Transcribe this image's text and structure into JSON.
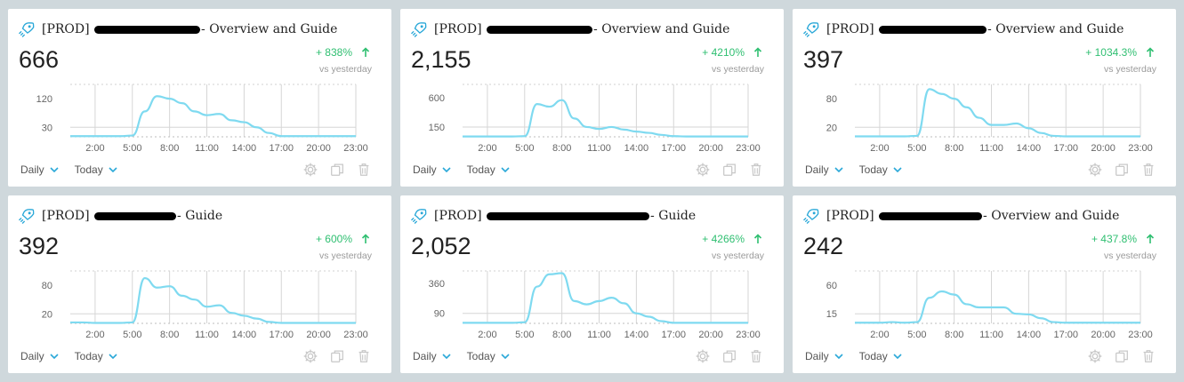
{
  "cards": [
    {
      "title_prefix": "[PROD]",
      "title_suffix": "- Overview and Guide",
      "value": "666",
      "change": "+ 838%",
      "vs_label": "vs yesterday",
      "granularity": "Daily",
      "range": "Today",
      "chart_data": {
        "type": "area",
        "x": [
          "0:00",
          "1:00",
          "2:00",
          "3:00",
          "4:00",
          "5:00",
          "6:00",
          "7:00",
          "8:00",
          "9:00",
          "10:00",
          "11:00",
          "12:00",
          "13:00",
          "14:00",
          "15:00",
          "16:00",
          "17:00",
          "18:00",
          "19:00",
          "20:00",
          "21:00",
          "22:00",
          "23:00"
        ],
        "x_tick_labels": [
          "2:00",
          "5:00",
          "8:00",
          "11:00",
          "14:00",
          "17:00",
          "20:00",
          "23:00"
        ],
        "y_tick_labels": [
          "120",
          "30"
        ],
        "y_ticks": [
          120,
          30
        ],
        "ylim": [
          0,
          165
        ],
        "values": [
          2,
          2,
          2,
          2,
          2,
          4,
          80,
          128,
          120,
          106,
          80,
          68,
          72,
          52,
          46,
          30,
          12,
          2,
          2,
          2,
          2,
          2,
          2,
          2
        ]
      }
    },
    {
      "title_prefix": "[PROD]",
      "title_suffix": "- Overview and Guide",
      "value": "2,155",
      "change": "+ 4210%",
      "vs_label": "vs yesterday",
      "granularity": "Daily",
      "range": "Today",
      "chart_data": {
        "type": "area",
        "x": [
          "0:00",
          "1:00",
          "2:00",
          "3:00",
          "4:00",
          "5:00",
          "6:00",
          "7:00",
          "8:00",
          "9:00",
          "10:00",
          "11:00",
          "12:00",
          "13:00",
          "14:00",
          "15:00",
          "16:00",
          "17:00",
          "18:00",
          "19:00",
          "20:00",
          "21:00",
          "22:00",
          "23:00"
        ],
        "x_tick_labels": [
          "2:00",
          "5:00",
          "8:00",
          "11:00",
          "14:00",
          "17:00",
          "20:00",
          "23:00"
        ],
        "y_tick_labels": [
          "600",
          "150"
        ],
        "y_ticks": [
          600,
          150
        ],
        "ylim": [
          0,
          800
        ],
        "values": [
          5,
          5,
          5,
          5,
          5,
          10,
          500,
          460,
          560,
          280,
          150,
          120,
          150,
          110,
          80,
          60,
          30,
          10,
          5,
          5,
          5,
          5,
          5,
          5
        ]
      }
    },
    {
      "title_prefix": "[PROD]",
      "title_suffix": "- Overview and Guide",
      "value": "397",
      "change": "+ 1034.3%",
      "vs_label": "vs yesterday",
      "granularity": "Daily",
      "range": "Today",
      "chart_data": {
        "type": "area",
        "x": [
          "0:00",
          "1:00",
          "2:00",
          "3:00",
          "4:00",
          "5:00",
          "6:00",
          "7:00",
          "8:00",
          "9:00",
          "10:00",
          "11:00",
          "12:00",
          "13:00",
          "14:00",
          "15:00",
          "16:00",
          "17:00",
          "18:00",
          "19:00",
          "20:00",
          "21:00",
          "22:00",
          "23:00"
        ],
        "x_tick_labels": [
          "2:00",
          "5:00",
          "8:00",
          "11:00",
          "14:00",
          "17:00",
          "20:00",
          "23:00"
        ],
        "y_tick_labels": [
          "80",
          "20"
        ],
        "y_ticks": [
          80,
          20
        ],
        "ylim": [
          0,
          110
        ],
        "values": [
          1,
          1,
          1,
          1,
          1,
          2,
          100,
          90,
          80,
          62,
          40,
          25,
          25,
          28,
          18,
          8,
          2,
          1,
          1,
          1,
          1,
          1,
          1,
          1
        ]
      }
    },
    {
      "title_prefix": "[PROD]",
      "title_suffix": "- Guide",
      "value": "392",
      "change": "+ 600%",
      "vs_label": "vs yesterday",
      "granularity": "Daily",
      "range": "Today",
      "chart_data": {
        "type": "area",
        "x": [
          "0:00",
          "1:00",
          "2:00",
          "3:00",
          "4:00",
          "5:00",
          "6:00",
          "7:00",
          "8:00",
          "9:00",
          "10:00",
          "11:00",
          "12:00",
          "13:00",
          "14:00",
          "15:00",
          "16:00",
          "17:00",
          "18:00",
          "19:00",
          "20:00",
          "21:00",
          "22:00",
          "23:00"
        ],
        "x_tick_labels": [
          "2:00",
          "5:00",
          "8:00",
          "11:00",
          "14:00",
          "17:00",
          "20:00",
          "23:00"
        ],
        "y_tick_labels": [
          "80",
          "20"
        ],
        "y_ticks": [
          80,
          20
        ],
        "ylim": [
          0,
          110
        ],
        "values": [
          2,
          2,
          1,
          1,
          1,
          2,
          95,
          75,
          78,
          58,
          50,
          35,
          38,
          22,
          16,
          10,
          3,
          1,
          1,
          1,
          1,
          1,
          1,
          1
        ]
      }
    },
    {
      "title_prefix": "[PROD]",
      "title_suffix": "- Guide",
      "value": "2,052",
      "change": "+ 4266%",
      "vs_label": "vs yesterday",
      "granularity": "Daily",
      "range": "Today",
      "chart_data": {
        "type": "area",
        "x": [
          "0:00",
          "1:00",
          "2:00",
          "3:00",
          "4:00",
          "5:00",
          "6:00",
          "7:00",
          "8:00",
          "9:00",
          "10:00",
          "11:00",
          "12:00",
          "13:00",
          "14:00",
          "15:00",
          "16:00",
          "17:00",
          "18:00",
          "19:00",
          "20:00",
          "21:00",
          "22:00",
          "23:00"
        ],
        "x_tick_labels": [
          "2:00",
          "5:00",
          "8:00",
          "11:00",
          "14:00",
          "17:00",
          "20:00",
          "23:00"
        ],
        "y_tick_labels": [
          "360",
          "90"
        ],
        "y_ticks": [
          360,
          90
        ],
        "ylim": [
          0,
          470
        ],
        "values": [
          5,
          5,
          5,
          5,
          5,
          10,
          330,
          440,
          450,
          200,
          170,
          200,
          230,
          180,
          90,
          60,
          20,
          5,
          5,
          5,
          5,
          5,
          5,
          5
        ]
      }
    },
    {
      "title_prefix": "[PROD]",
      "title_suffix": "- Overview and Guide",
      "value": "242",
      "change": "+ 437.8%",
      "vs_label": "vs yesterday",
      "granularity": "Daily",
      "range": "Today",
      "chart_data": {
        "type": "area",
        "x": [
          "0:00",
          "1:00",
          "2:00",
          "3:00",
          "4:00",
          "5:00",
          "6:00",
          "7:00",
          "8:00",
          "9:00",
          "10:00",
          "11:00",
          "12:00",
          "13:00",
          "14:00",
          "15:00",
          "16:00",
          "17:00",
          "18:00",
          "19:00",
          "20:00",
          "21:00",
          "22:00",
          "23:00"
        ],
        "x_tick_labels": [
          "2:00",
          "5:00",
          "8:00",
          "11:00",
          "14:00",
          "17:00",
          "20:00",
          "23:00"
        ],
        "y_tick_labels": [
          "60",
          "15"
        ],
        "y_ticks": [
          60,
          15
        ],
        "ylim": [
          0,
          82
        ],
        "values": [
          1,
          1,
          1,
          2,
          1,
          2,
          40,
          50,
          45,
          30,
          25,
          25,
          25,
          15,
          14,
          8,
          2,
          1,
          1,
          1,
          1,
          1,
          1,
          1
        ]
      }
    }
  ],
  "colors": {
    "line": "#7fdaf0",
    "accent": "#2aa8d8",
    "positive": "#2fbf71"
  },
  "icons": [
    "rocket-icon",
    "arrow-up-icon",
    "chevron-down-icon",
    "gear-icon",
    "copy-icon",
    "trash-icon"
  ]
}
